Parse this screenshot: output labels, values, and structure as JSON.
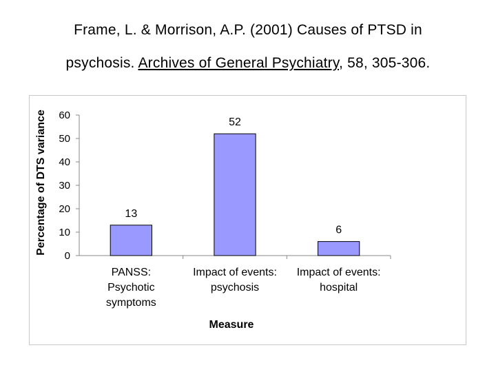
{
  "citation": {
    "line1": "Frame, L. & Morrison, A.P. (2001) Causes of PTSD in",
    "line2_prefix": "psychosis. ",
    "journal": "Archives of General Psychiatry",
    "line2_suffix": ", 58, 305-306."
  },
  "chart_data": {
    "type": "bar",
    "categories": [
      [
        "PANSS:",
        "Psychotic",
        "symptoms"
      ],
      [
        "Impact of events:",
        "psychosis"
      ],
      [
        "Impact of events:",
        "hospital"
      ]
    ],
    "values": [
      13,
      52,
      6
    ],
    "data_labels": [
      "13",
      "52",
      "6"
    ],
    "xlabel": "Measure",
    "ylabel": "Percentage of DTS variance",
    "ylim": [
      0,
      60
    ],
    "yticks": [
      0,
      10,
      20,
      30,
      40,
      50,
      60
    ],
    "grid": false,
    "legend": "none",
    "bar_color": "#9999ff",
    "bar_edge_color": "#000000"
  }
}
